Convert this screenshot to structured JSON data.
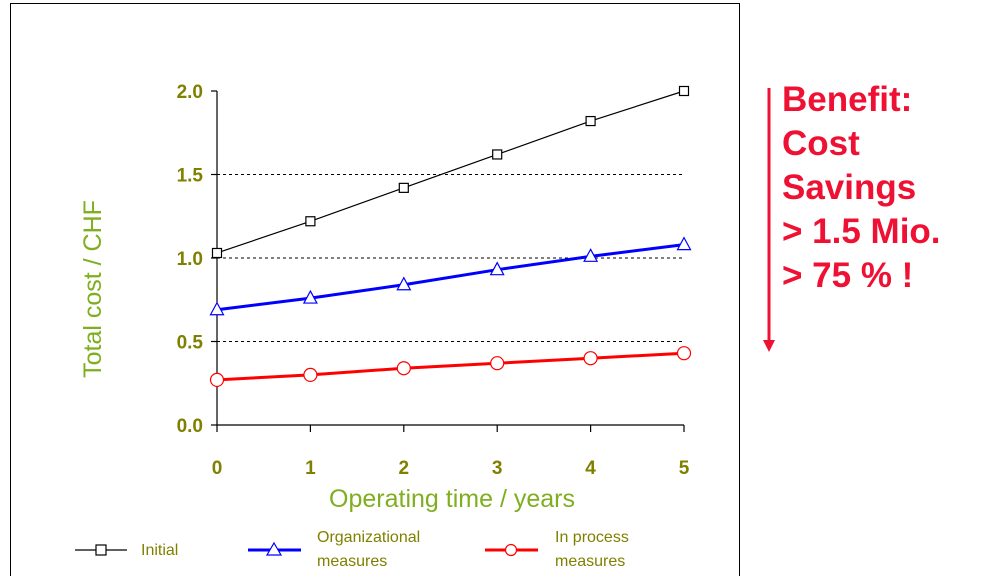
{
  "chart_data": {
    "type": "line",
    "xlabel": "Operating time / years",
    "ylabel": "Total cost / CHF",
    "x": [
      0,
      1,
      2,
      3,
      4,
      5
    ],
    "xlim": [
      0,
      5
    ],
    "ylim": [
      0,
      2.0
    ],
    "yticks": [
      "0.0",
      "0.5",
      "1.0",
      "1.5",
      "2.0"
    ],
    "xticks": [
      "0",
      "1",
      "2",
      "3",
      "4",
      "5"
    ],
    "grid": "horizontal dotted at 0.5, 1.0, 1.5",
    "legend_position": "bottom",
    "series": [
      {
        "name": "Initial",
        "values": [
          1.03,
          1.22,
          1.42,
          1.62,
          1.82,
          2.0
        ],
        "color": "#000000",
        "marker": "square"
      },
      {
        "name": "Organizational measures",
        "values": [
          0.69,
          0.76,
          0.84,
          0.93,
          1.01,
          1.08
        ],
        "color": "#0000ff",
        "marker": "triangle"
      },
      {
        "name": "In process measures",
        "values": [
          0.27,
          0.3,
          0.34,
          0.37,
          0.4,
          0.43
        ],
        "color": "#ff0000",
        "marker": "circle"
      }
    ]
  },
  "legend": {
    "initial": "Initial",
    "organizational_line1": "Organizational",
    "organizational_line2": "measures",
    "in_process_line1": "In process",
    "in_process_line2": "measures"
  },
  "benefit": {
    "lines": [
      "Benefit:",
      "Cost",
      "Savings",
      "> 1.5 Mio.",
      "> 75 % !"
    ],
    "color": "#ee1133"
  }
}
